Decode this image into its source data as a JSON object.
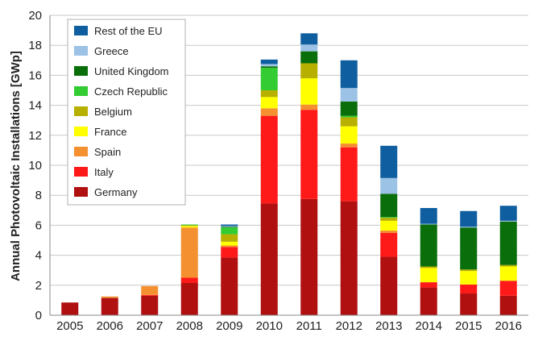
{
  "chart_data": {
    "type": "bar",
    "stacked": true,
    "title": "",
    "xlabel": "",
    "ylabel": "Annual Photovoltaic Installations [GWp]",
    "ylim": [
      0,
      20
    ],
    "yticks": [
      0,
      2,
      4,
      6,
      8,
      10,
      12,
      14,
      16,
      18,
      20
    ],
    "grid": "horizontal",
    "legend_position": "top-left",
    "categories": [
      "2005",
      "2006",
      "2007",
      "2008",
      "2009",
      "2010",
      "2011",
      "2012",
      "2013",
      "2014",
      "2015",
      "2016"
    ],
    "series": [
      {
        "name": "Germany",
        "color": "#b01010",
        "values": [
          0.85,
          1.15,
          1.3,
          2.15,
          3.85,
          7.45,
          7.75,
          7.6,
          3.9,
          1.85,
          1.45,
          1.3
        ]
      },
      {
        "name": "Italy",
        "color": "#ff1a1a",
        "values": [
          0.0,
          0.0,
          0.05,
          0.35,
          0.7,
          5.85,
          5.95,
          3.6,
          1.6,
          0.35,
          0.6,
          1.0
        ]
      },
      {
        "name": "Spain",
        "color": "#f59030",
        "values": [
          0.0,
          0.1,
          0.6,
          3.35,
          0.1,
          0.5,
          0.35,
          0.25,
          0.15,
          0.0,
          0.0,
          0.0
        ]
      },
      {
        "name": "France",
        "color": "#ffff00",
        "values": [
          0.0,
          0.0,
          0.0,
          0.1,
          0.25,
          0.75,
          1.75,
          1.15,
          0.65,
          0.95,
          0.9,
          0.95
        ]
      },
      {
        "name": "Belgium",
        "color": "#b8b000",
        "values": [
          0.0,
          0.0,
          0.0,
          0.05,
          0.5,
          0.45,
          1.0,
          0.6,
          0.2,
          0.1,
          0.1,
          0.1
        ]
      },
      {
        "name": "Czech Republic",
        "color": "#33cc33",
        "values": [
          0.0,
          0.0,
          0.0,
          0.05,
          0.45,
          1.5,
          0.0,
          0.1,
          0.05,
          0.0,
          0.0,
          0.0
        ]
      },
      {
        "name": "United Kingdom",
        "color": "#0a6e0a",
        "values": [
          0.0,
          0.0,
          0.0,
          0.0,
          0.05,
          0.1,
          0.8,
          0.95,
          1.55,
          2.8,
          2.8,
          2.9
        ]
      },
      {
        "name": "Greece",
        "color": "#9cc3e6",
        "values": [
          0.0,
          0.0,
          0.0,
          0.0,
          0.05,
          0.15,
          0.45,
          0.9,
          1.05,
          0.05,
          0.05,
          0.05
        ]
      },
      {
        "name": "Rest of the EU",
        "color": "#0f5fa0",
        "values": [
          0.0,
          0.0,
          0.0,
          0.0,
          0.1,
          0.3,
          0.75,
          1.85,
          2.15,
          1.05,
          1.05,
          1.0
        ]
      }
    ]
  }
}
